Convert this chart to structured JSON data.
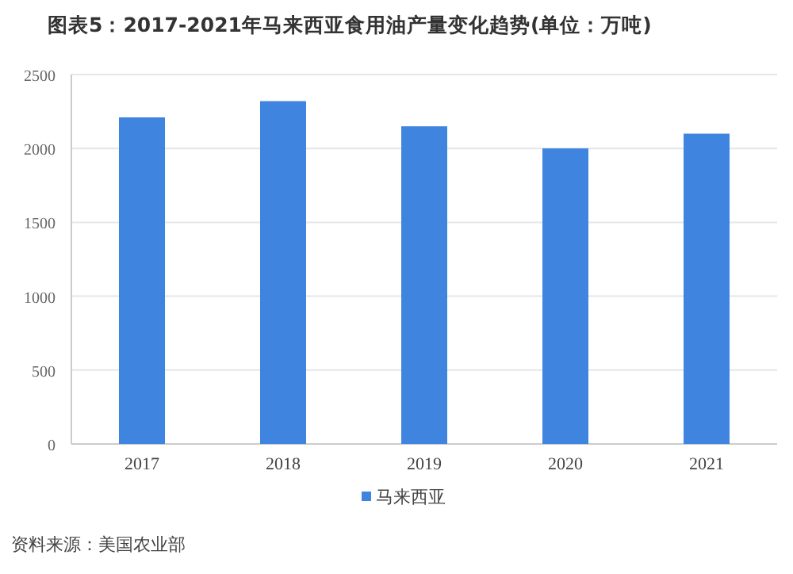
{
  "chart_data": {
    "type": "bar",
    "title": "图表5：2017-2021年马来西亚食用油产量变化趋势(单位：万吨)",
    "categories": [
      "2017",
      "2018",
      "2019",
      "2020",
      "2021"
    ],
    "series": [
      {
        "name": "马来西亚",
        "color": "#3f85e0",
        "values": [
          2210,
          2320,
          2150,
          2000,
          2100
        ]
      }
    ],
    "ylim": [
      0,
      2500
    ],
    "yticks": [
      0,
      500,
      1000,
      1500,
      2000,
      2500
    ],
    "grid": "y",
    "legend": "bottom",
    "annotations": [
      "资料来源：美国农业部"
    ]
  }
}
